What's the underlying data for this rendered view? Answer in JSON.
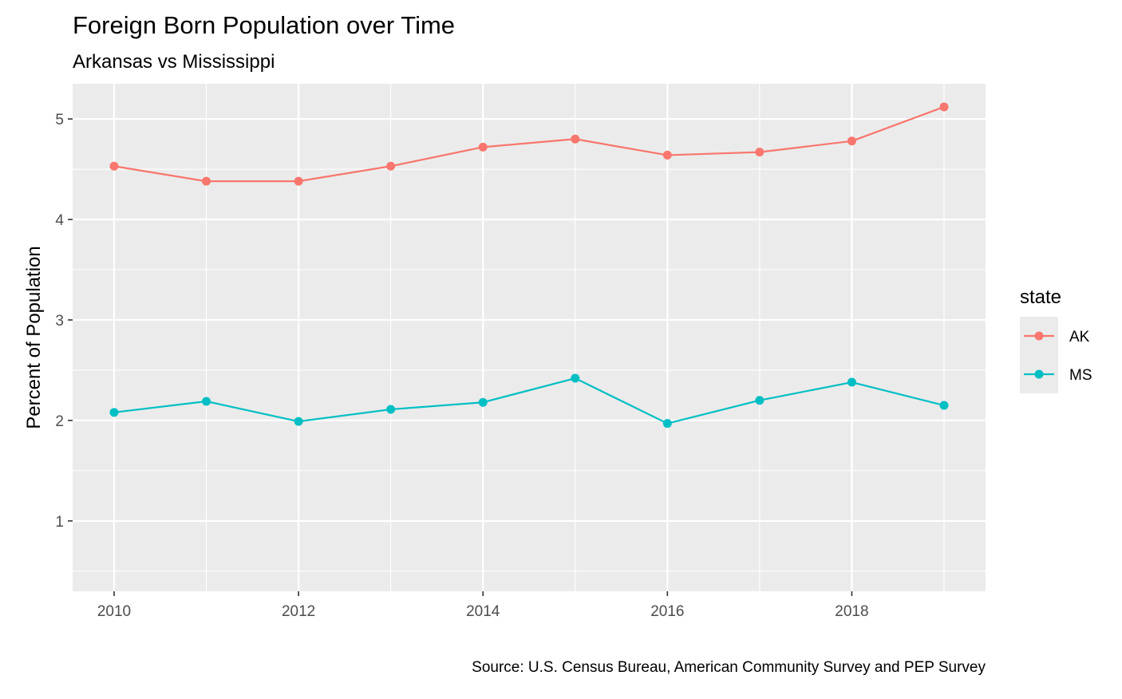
{
  "chart_data": {
    "type": "line",
    "title": "Foreign Born Population over Time",
    "subtitle": "Arkansas vs Mississippi",
    "xlabel": "",
    "ylabel": "Percent of Population",
    "caption": "Source: U.S. Census Bureau, American Community Survey and PEP Survey",
    "x": [
      2010,
      2011,
      2012,
      2013,
      2014,
      2015,
      2016,
      2017,
      2018,
      2019
    ],
    "xlim": [
      2009.55,
      2019.45
    ],
    "ylim": [
      0.3,
      5.35
    ],
    "x_ticks": [
      2010,
      2012,
      2014,
      2016,
      2018
    ],
    "x_tick_labels": [
      "2010",
      "2012",
      "2014",
      "2016",
      "2018"
    ],
    "y_ticks": [
      1,
      2,
      3,
      4,
      5
    ],
    "y_tick_labels": [
      "1",
      "2",
      "3",
      "4",
      "5"
    ],
    "y_minor_ticks": [
      0.5,
      1.5,
      2.5,
      3.5,
      4.5
    ],
    "x_minor_ticks": [
      2011,
      2013,
      2015,
      2017,
      2019
    ],
    "grid": true,
    "legend": {
      "title": "state",
      "position": "right"
    },
    "series": [
      {
        "name": "AK",
        "color": "#F8766D",
        "values": [
          4.53,
          4.38,
          4.38,
          4.53,
          4.72,
          4.8,
          4.64,
          4.67,
          4.78,
          5.12
        ]
      },
      {
        "name": "MS",
        "color": "#00BFC4",
        "values": [
          2.08,
          2.19,
          1.99,
          2.11,
          2.18,
          2.42,
          1.97,
          2.2,
          2.38,
          2.15
        ]
      }
    ],
    "colors": {
      "panel_background": "#EBEBEB",
      "grid_line": "#FFFFFF",
      "tick_text": "#4D4D4D",
      "tick_mark": "#333333"
    }
  }
}
